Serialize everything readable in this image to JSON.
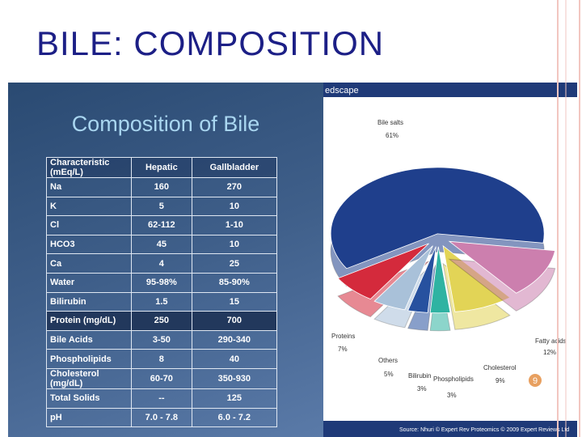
{
  "slide_title": "BILE: COMPOSITION",
  "table": {
    "title": "Composition of Bile",
    "header": [
      "Characteristic (mEq/L)",
      "Hepatic",
      "Gallbladder"
    ],
    "rows": [
      [
        "Na",
        "160",
        "270"
      ],
      [
        "K",
        "5",
        "10"
      ],
      [
        "Cl",
        "62-112",
        "1-10"
      ],
      [
        "HCO3",
        "45",
        "10"
      ],
      [
        "Ca",
        "4",
        "25"
      ],
      [
        "Water",
        "95-98%",
        "85-90%"
      ],
      [
        "Bilirubin",
        "1.5",
        "15"
      ],
      [
        "Protein (mg/dL)",
        "250",
        "700"
      ],
      [
        "Bile Acids",
        "3-50",
        "290-340"
      ],
      [
        "Phospholipids",
        "8",
        "40"
      ],
      [
        "Cholesterol (mg/dL)",
        "60-70",
        "350-930"
      ],
      [
        "Total Solids",
        "--",
        "125"
      ],
      [
        "pH",
        "7.0 - 7.8",
        "6.0 - 7.2"
      ]
    ]
  },
  "brand": "edscape",
  "source": "Source: Nhuri © Expert Rev Proteomics © 2009 Expert Reviews Ltd",
  "page_number": "9",
  "chart_data": {
    "type": "pie",
    "categories": [
      "Bile salts",
      "Proteins",
      "Others",
      "Bilirubin",
      "Phospholipids",
      "Cholesterol",
      "Fatty acids"
    ],
    "values": [
      61,
      7,
      5,
      3,
      3,
      9,
      12
    ],
    "value_labels": [
      "61%",
      "7%",
      "5%",
      "3%",
      "3%",
      "9%",
      "12%"
    ],
    "colors": [
      "#1f3f8c",
      "#d42a3c",
      "#a9c1d9",
      "#27519f",
      "#2fb3a2",
      "#e2d456",
      "#cc7fae"
    ]
  }
}
